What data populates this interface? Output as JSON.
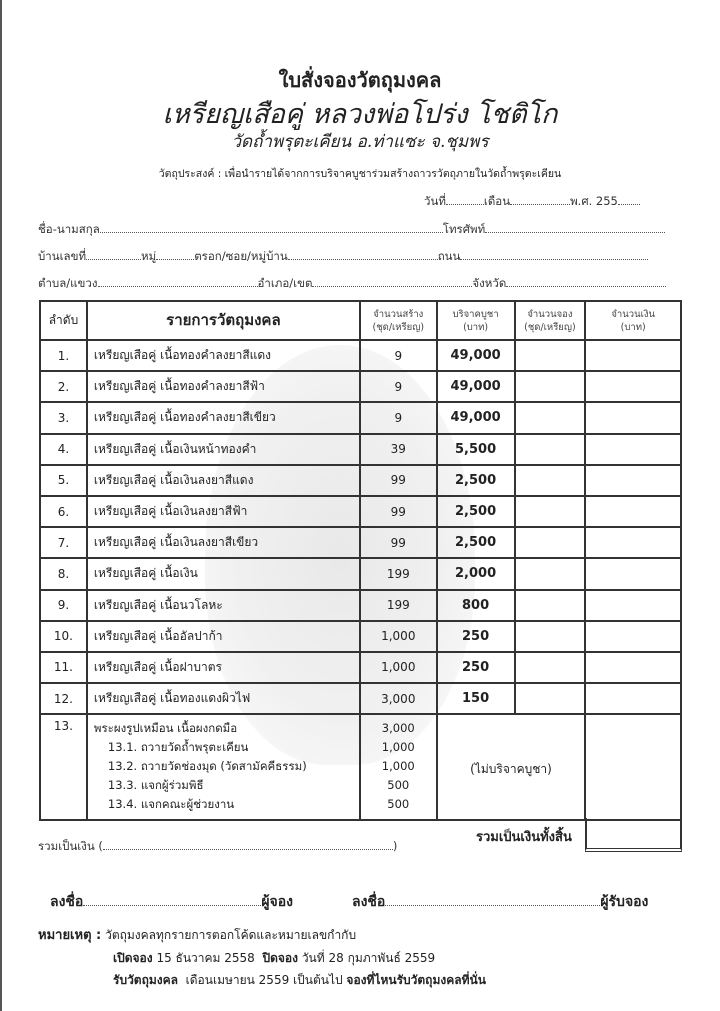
{
  "header": {
    "title": "ใบสั่งจองวัตถุมงคล",
    "subtitle": "เหรียญเสือคู่ หลวงพ่อโปร่ง โชติโก",
    "temple": "วัดถ้ำพรุตะเคียน อ.ท่าแซะ จ.ชุมพร",
    "purpose": "วัตถุประสงค์ : เพื่อนำรายได้จากการบริจาคบูชาร่วมสร้างถาวรวัตถุภายในวัดถ้ำพรุตะเคียน"
  },
  "form": {
    "date": "วันที่",
    "month": "เดือน",
    "year": "พ.ศ. 255",
    "name": "ชื่อ-นามสกุล",
    "phone": "โทรศัพท์",
    "house_no": "บ้านเลขที่",
    "moo": "หมู่",
    "soi": "ตรอก/ซอย/หมู่บ้าน",
    "road": "ถนน",
    "subdistrict": "ตำบล/แขวง",
    "district": "อำเภอ/เขต",
    "province": "จังหวัด"
  },
  "table": {
    "headers": {
      "order": "ลำดับ",
      "item": "รายการวัตถุมงคล",
      "made_1": "จำนวนสร้าง",
      "made_2": "(ชุด/เหรียญ)",
      "price_1": "บริจาคบูชา",
      "price_2": "(บาท)",
      "qty_1": "จำนวนจอง",
      "qty_2": "(ชุด/เหรียญ)",
      "amount_1": "จำนวนเงิน",
      "amount_2": "(บาท)"
    },
    "rows": [
      {
        "no": "1.",
        "item": "เหรียญเสือคู่ เนื้อทองคำลงยาสีแดง",
        "made": "9",
        "price": "49,000"
      },
      {
        "no": "2.",
        "item": "เหรียญเสือคู่ เนื้อทองคำลงยาสีฟ้า",
        "made": "9",
        "price": "49,000"
      },
      {
        "no": "3.",
        "item": "เหรียญเสือคู่ เนื้อทองคำลงยาสีเขียว",
        "made": "9",
        "price": "49,000"
      },
      {
        "no": "4.",
        "item": "เหรียญเสือคู่ เนื้อเงินหน้าทองคำ",
        "made": "39",
        "price": "5,500"
      },
      {
        "no": "5.",
        "item": "เหรียญเสือคู่ เนื้อเงินลงยาสีแดง",
        "made": "99",
        "price": "2,500"
      },
      {
        "no": "6.",
        "item": "เหรียญเสือคู่ เนื้อเงินลงยาสีฟ้า",
        "made": "99",
        "price": "2,500"
      },
      {
        "no": "7.",
        "item": "เหรียญเสือคู่ เนื้อเงินลงยาสีเขียว",
        "made": "99",
        "price": "2,500"
      },
      {
        "no": "8.",
        "item": "เหรียญเสือคู่ เนื้อเงิน",
        "made": "199",
        "price": "2,000"
      },
      {
        "no": "9.",
        "item": "เหรียญเสือคู่ เนื้อนวโลหะ",
        "made": "199",
        "price": "800"
      },
      {
        "no": "10.",
        "item": "เหรียญเสือคู่ เนื้ออัลปาก้า",
        "made": "1,000",
        "price": "250"
      },
      {
        "no": "11.",
        "item": "เหรียญเสือคู่ เนื้อฝาบาตร",
        "made": "1,000",
        "price": "250"
      },
      {
        "no": "12.",
        "item": "เหรียญเสือคู่ เนื้อทองแดงผิวไฟ",
        "made": "3,000",
        "price": "150"
      }
    ],
    "row13": {
      "no": "13.",
      "lines": [
        {
          "item": "พระผงรูปเหมือน เนื้อผงกดมือ",
          "made": "3,000"
        },
        {
          "item": "13.1. ถวายวัดถ้ำพรุตะเคียน",
          "made": "1,000"
        },
        {
          "item": "13.2. ถวายวัดช่องมุด (วัดสามัคคีธรรม)",
          "made": "1,000"
        },
        {
          "item": "13.3. แจกผู้ร่วมพิธี",
          "made": "500"
        },
        {
          "item": "13.4. แจกคณะผู้ช่วยงาน",
          "made": "500"
        }
      ],
      "price_note": "(ไม่บริจาคบูชา)"
    }
  },
  "totals": {
    "words_label": "รวมเป็นเงิน (",
    "words_close": ")",
    "grand_total": "รวมเป็นเงินทั้งสิ้น"
  },
  "signatures": {
    "sign": "ลงชื่อ",
    "booker": "ผู้จอง",
    "receiver": "ผู้รับจอง"
  },
  "notes": {
    "label": "หมายเหตุ :",
    "line1": "วัตถุมงคลทุกรายการตอกโค้ดและหมายเลขกำกับ",
    "open_label": "เปิดจอง",
    "open_date": "15 ธันวาคม 2558",
    "close_label": "ปิดจอง",
    "close_date": "วันที่ 28 กุมภาพันธ์ 2559",
    "receive_label": "รับวัตถุมงคล",
    "receive_date": "เดือนเมษายน 2559 เป็นต้นไป",
    "receive_where": "จองที่ไหนรับวัตถุมงคลที่นั่น"
  }
}
